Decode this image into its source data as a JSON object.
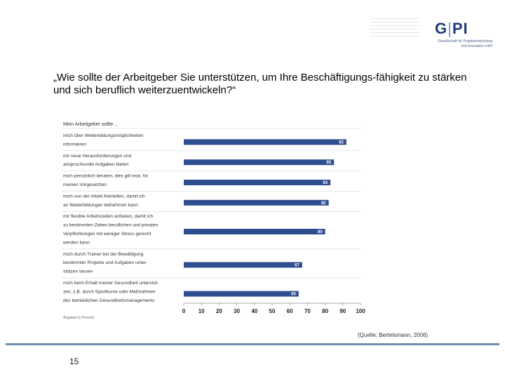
{
  "logo": {
    "text": "G|PI",
    "left": "G",
    "separator": "|",
    "right": "PI",
    "subtitle_line1": "Gesellschaft für Projektentwicklung",
    "subtitle_line2": "und Innovation mbH"
  },
  "heading": "„Wie sollte der Arbeitgeber Sie unterstützen, um Ihre Beschäftigungs-fähigkeit zu stärken und sich beruflich weiterzuentwickeln?“",
  "source": "(Quelle: Bertelsmann, 2006)",
  "page_number": "15",
  "colors": {
    "bar": "#2e4f8f",
    "label_text": "#ffffff",
    "divider": "#c9cfd9"
  },
  "chart_data": {
    "type": "bar",
    "orientation": "horizontal",
    "title": "Mein Arbeitgeber sollte ...",
    "categories": [
      [
        "mich über Weiterbildungsmöglichkeiten",
        "informieren"
      ],
      [
        "mir neue Herausforderungen und",
        "anspruchsvolle Aufgaben bieten"
      ],
      [
        "mich persönlich beraten, dies gilt insb. für",
        "meinen Vorgesetzten"
      ],
      [
        "mich von der Arbeit freistellen, damit ich",
        "an Weiterbildungen teilnehmen kann"
      ],
      [
        "mir flexible Arbeitszeiten anbieten, damit ich",
        "zu bestimmten Zeiten beruflichen und privaten",
        "Verpflichtungen mit weniger Stress gerecht",
        "werden kann"
      ],
      [
        "mich durch Trainer bei der Bewältigung",
        "bestimmter Projekte und Aufgaben unter-",
        "stützen lassen"
      ],
      [
        "mich beim Erhalt meiner Gesundheit unterstüt-",
        "zen, z.B. durch Sportkurse oder Maßnahmen",
        "des betrieblichen Gesundheitsmanagements"
      ]
    ],
    "values": [
      92,
      85,
      83,
      82,
      80,
      67,
      65
    ],
    "xlim": [
      0,
      100
    ],
    "xticks": [
      0,
      10,
      20,
      30,
      40,
      50,
      60,
      70,
      80,
      90,
      100
    ],
    "note": "Angaben in Prozent"
  }
}
